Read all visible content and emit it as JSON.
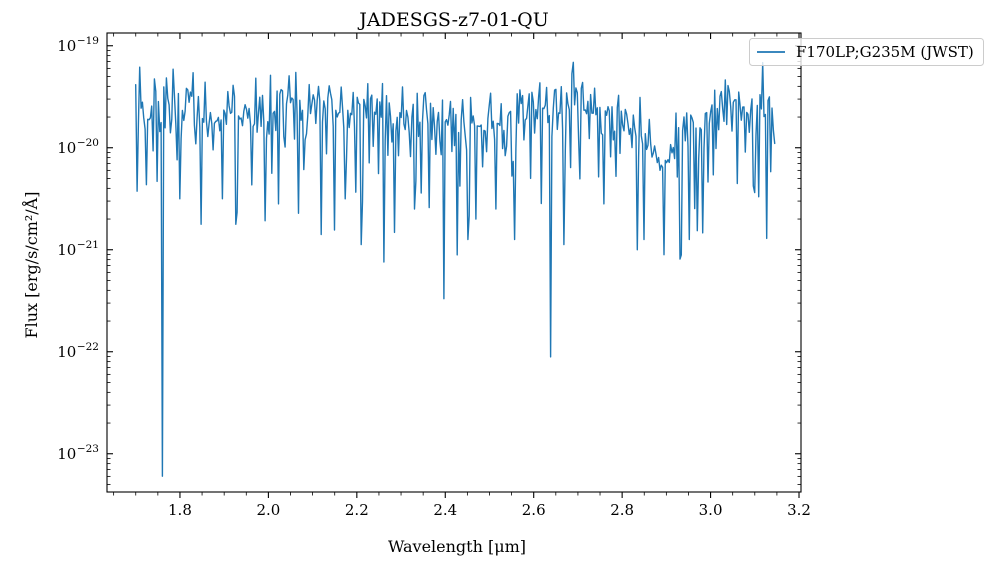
{
  "figure": {
    "title": "JADESGS-z7-01-QU",
    "xlabel": "Wavelength [μm]",
    "ylabel": "Flux [erg/s/cm²/Å]",
    "background": "#ffffff",
    "text_color": "#000000",
    "spine_color": "#000000",
    "legend": {
      "label": "F170LP;G235M (JWST)",
      "line_color": "#1f77b4",
      "border_color": "#cccccc",
      "fill": "rgba(255,255,255,0.8)"
    }
  },
  "chart_data": {
    "type": "line",
    "title": "JADESGS-z7-01-QU",
    "xlabel": "Wavelength [μm]",
    "ylabel": "Flux [erg/s/cm²/Å]",
    "legend_position": "upper right, overflowing right edge of axes",
    "grid": false,
    "x_axis": {
      "lim": [
        1.635,
        3.2045
      ],
      "major_ticks": [
        1.8,
        2.0,
        2.2,
        2.4,
        2.6,
        2.8,
        3.0,
        3.2
      ],
      "minor_tick_step": 0.05
    },
    "y_axis": {
      "scale": "log",
      "lim_log10": [
        -23.375,
        -18.875
      ],
      "major_tick_exponents": [
        -19,
        -20,
        -21,
        -22,
        -23
      ],
      "minor_tick_mantissas": [
        2,
        3,
        4,
        5,
        6,
        7,
        8,
        9
      ]
    },
    "series": [
      {
        "name": "F170LP;G235M (JWST)",
        "color": "#1f77b4",
        "x_start_um": 1.7,
        "x_end_um": 3.145,
        "n_points": 480,
        "typical_flux": "noisy continuum near 2e-20 erg/s/cm2/A with frequent downward spikes",
        "baseline_log10_flux_anchors": [
          [
            1.7,
            -19.62
          ],
          [
            1.76,
            -19.58
          ],
          [
            1.8,
            -19.55
          ],
          [
            1.85,
            -19.6
          ],
          [
            1.9,
            -19.62
          ],
          [
            1.95,
            -19.6
          ],
          [
            2.0,
            -19.62
          ],
          [
            2.05,
            -19.6
          ],
          [
            2.1,
            -19.55
          ],
          [
            2.15,
            -19.62
          ],
          [
            2.2,
            -19.66
          ],
          [
            2.25,
            -19.66
          ],
          [
            2.3,
            -19.66
          ],
          [
            2.35,
            -19.7
          ],
          [
            2.4,
            -19.8
          ],
          [
            2.43,
            -19.85
          ],
          [
            2.47,
            -19.82
          ],
          [
            2.52,
            -19.75
          ],
          [
            2.57,
            -19.7
          ],
          [
            2.62,
            -19.62
          ],
          [
            2.66,
            -19.6
          ],
          [
            2.7,
            -19.55
          ],
          [
            2.75,
            -19.6
          ],
          [
            2.8,
            -19.72
          ],
          [
            2.83,
            -19.85
          ],
          [
            2.86,
            -19.95
          ],
          [
            2.89,
            -20.25
          ],
          [
            2.92,
            -19.95
          ],
          [
            2.945,
            -19.9
          ],
          [
            2.97,
            -19.75
          ],
          [
            3.0,
            -19.62
          ],
          [
            3.04,
            -19.52
          ],
          [
            3.08,
            -19.6
          ],
          [
            3.11,
            -19.62
          ],
          [
            3.145,
            -19.7
          ]
        ],
        "noise_sigma_dex": 0.17,
        "random_dip_fraction": 0.1,
        "random_dip_extra_dex": [
          0.25,
          1.1
        ],
        "low_noise_window_um": [
          2.862,
          2.918
        ],
        "clip_top_log10": -19.1,
        "deep_absorption_dips_log10": [
          [
            1.76,
            -23.22
          ],
          [
            1.847,
            -20.75
          ],
          [
            1.895,
            -20.5
          ],
          [
            1.927,
            -20.75
          ],
          [
            2.023,
            -20.55
          ],
          [
            2.12,
            -20.85
          ],
          [
            2.175,
            -20.5
          ],
          [
            2.21,
            -20.95
          ],
          [
            2.262,
            -21.12
          ],
          [
            2.33,
            -20.6
          ],
          [
            2.398,
            -21.48
          ],
          [
            2.428,
            -21.05
          ],
          [
            2.452,
            -20.9
          ],
          [
            2.47,
            -20.7
          ],
          [
            2.515,
            -20.6
          ],
          [
            2.557,
            -20.9
          ],
          [
            2.638,
            -22.05
          ],
          [
            2.667,
            -20.95
          ],
          [
            2.758,
            -20.55
          ],
          [
            2.835,
            -21.0
          ],
          [
            2.848,
            -20.9
          ],
          [
            2.935,
            -21.05
          ],
          [
            2.952,
            -20.9
          ],
          [
            3.06,
            -20.35
          ],
          [
            3.1,
            -20.44
          ]
        ],
        "seed": 12
      }
    ]
  }
}
